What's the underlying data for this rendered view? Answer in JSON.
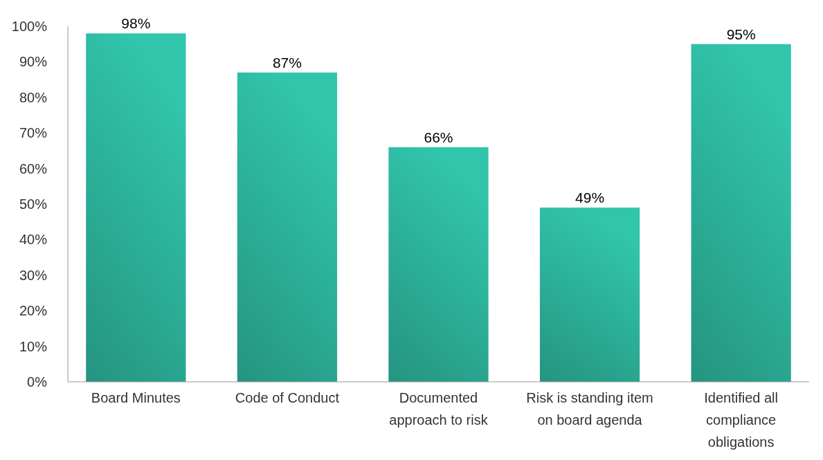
{
  "chart_data": {
    "type": "bar",
    "categories": [
      "Board Minutes",
      "Code of Conduct",
      "Documented approach to risk",
      "Risk is standing item on board agenda",
      "Identified all compliance obligations"
    ],
    "values": [
      98,
      87,
      66,
      49,
      95
    ],
    "value_labels": [
      "98%",
      "87%",
      "66%",
      "49%",
      "95%"
    ],
    "color": "#2aa892",
    "ylim": [
      0,
      100
    ],
    "yticks": [
      {
        "value": 0,
        "label": "0%"
      },
      {
        "value": 10,
        "label": "10%"
      },
      {
        "value": 20,
        "label": "20%"
      },
      {
        "value": 30,
        "label": "30%"
      },
      {
        "value": 40,
        "label": "40%"
      },
      {
        "value": 50,
        "label": "50%"
      },
      {
        "value": 60,
        "label": "60%"
      },
      {
        "value": 70,
        "label": "70%"
      },
      {
        "value": 80,
        "label": "80%"
      },
      {
        "value": 90,
        "label": "90%"
      },
      {
        "value": 100,
        "label": "100%"
      }
    ],
    "grid": false
  }
}
